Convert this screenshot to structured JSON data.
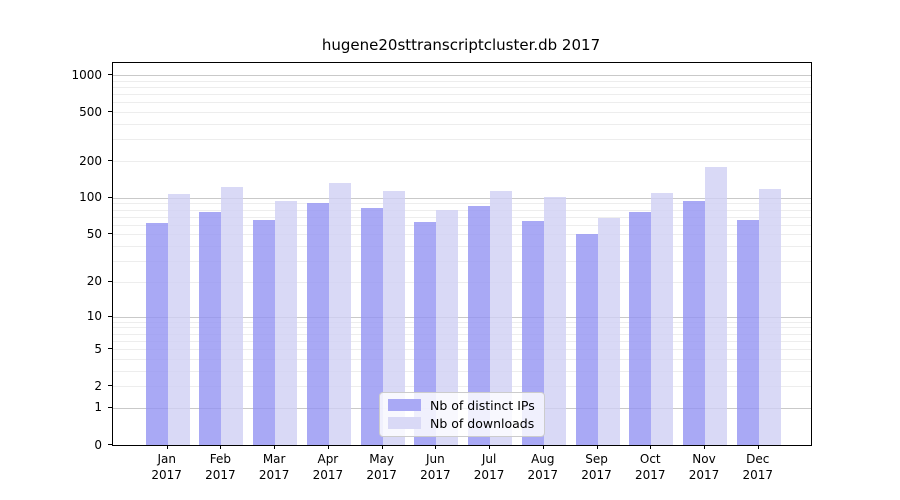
{
  "chart_data": {
    "type": "bar",
    "title": "hugene20sttranscriptcluster.db 2017",
    "year_label": "2017",
    "categories": [
      "Jan",
      "Feb",
      "Mar",
      "Apr",
      "May",
      "Jun",
      "Jul",
      "Aug",
      "Sep",
      "Oct",
      "Nov",
      "Dec"
    ],
    "series": [
      {
        "name": "Nb of distinct IPs",
        "color": "rgba(148,148,243,0.8)",
        "legend_color": "#a9a9f5",
        "values": [
          62,
          76,
          66,
          91,
          83,
          63,
          86,
          65,
          50,
          77,
          94,
          66
        ]
      },
      {
        "name": "Nb of downloads",
        "color": "rgba(208,208,244,0.8)",
        "legend_color": "#d9d9f6",
        "values": [
          107,
          123,
          95,
          132,
          113,
          79,
          114,
          101,
          68,
          110,
          180,
          119
        ]
      }
    ],
    "y_axis": {
      "scale": "log1p",
      "tick_values": [
        0,
        1,
        2,
        5,
        10,
        20,
        50,
        100,
        200,
        500,
        1000
      ],
      "major_grid_values": [
        1,
        10,
        100,
        1000
      ],
      "minor_grid_values": [
        2,
        3,
        4,
        5,
        6,
        7,
        8,
        9,
        20,
        30,
        40,
        50,
        60,
        70,
        80,
        90,
        200,
        300,
        400,
        500,
        600,
        700,
        800,
        900
      ],
      "major_grid_color": "#c9c9c9",
      "minor_grid_color": "#ededed"
    },
    "x_axis": {
      "tick_label_lines": 2
    },
    "legend_position": "bottom-center",
    "background_color": "#ffffff",
    "axis_frame_color": "#000000"
  }
}
